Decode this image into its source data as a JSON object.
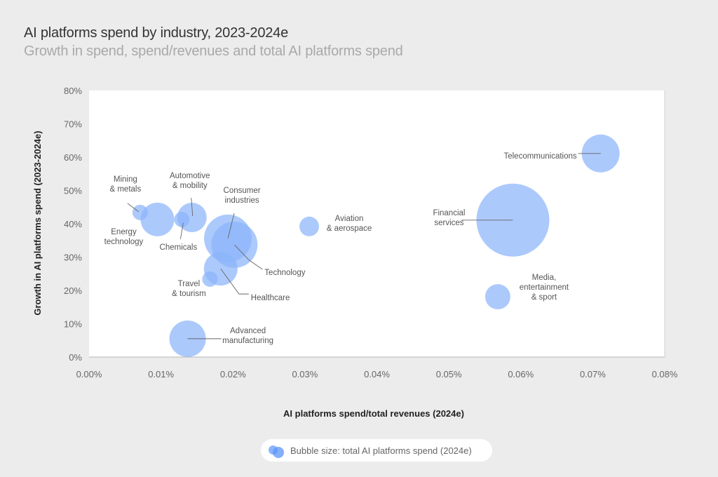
{
  "header": {
    "title": "AI platforms spend by industry, 2023-2024e",
    "subtitle": "Growth in spend, spend/revenues and total AI platforms spend"
  },
  "legend": {
    "text": "Bubble size: total AI platforms spend (2024e)",
    "icon": "overlapping-bubbles-icon"
  },
  "colors": {
    "bubble": "#8cb4fb",
    "background": "#ececec",
    "plot": "#ffffff"
  },
  "chart_data": {
    "type": "scatter",
    "subtype": "bubble",
    "title": "AI platforms spend by industry, 2023-2024e",
    "subtitle": "Growth in spend, spend/revenues and total AI platforms spend",
    "xlabel": "AI platforms spend/total revenues (2024e)",
    "ylabel": "Growth in AI platforms spend (2023-2024e)",
    "xlim": [
      0,
      0.08
    ],
    "ylim": [
      0,
      80
    ],
    "x_unit": "%",
    "y_unit": "%",
    "x_ticks": [
      "0.00%",
      "0.01%",
      "0.02%",
      "0.03%",
      "0.04%",
      "0.05%",
      "0.06%",
      "0.07%",
      "0.08%"
    ],
    "y_ticks": [
      "0%",
      "10%",
      "20%",
      "30%",
      "40%",
      "50%",
      "60%",
      "70%",
      "80%"
    ],
    "grid": false,
    "legend_position": "bottom-center",
    "size_label": "Bubble size: total AI platforms spend (2024e)",
    "size_note": "relative bubble size (radius-proportional, unitless)",
    "points": [
      {
        "name": "Mining & metals",
        "label_lines": [
          "Mining",
          "& metals"
        ],
        "x": 0.0071,
        "y": 43.4,
        "size": 11
      },
      {
        "name": "Energy technology",
        "label_lines": [
          "Energy",
          "technology"
        ],
        "x": 0.0095,
        "y": 41.3,
        "size": 24
      },
      {
        "name": "Chemicals",
        "label_lines": [
          "Chemicals"
        ],
        "x": 0.0129,
        "y": 41.3,
        "size": 11
      },
      {
        "name": "Automotive & mobility",
        "label_lines": [
          "Automotive",
          "& mobility"
        ],
        "x": 0.0143,
        "y": 41.9,
        "size": 21
      },
      {
        "name": "Consumer industries",
        "label_lines": [
          "Consumer",
          "industries"
        ],
        "x": 0.0193,
        "y": 35.6,
        "size": 34
      },
      {
        "name": "Technology",
        "label_lines": [
          "Technology"
        ],
        "x": 0.0202,
        "y": 33.7,
        "size": 33
      },
      {
        "name": "Healthcare",
        "label_lines": [
          "Healthcare"
        ],
        "x": 0.0183,
        "y": 26.5,
        "size": 24
      },
      {
        "name": "Travel & tourism",
        "label_lines": [
          "Travel",
          "& tourism"
        ],
        "x": 0.0168,
        "y": 23.4,
        "size": 11
      },
      {
        "name": "Advanced manufacturing",
        "label_lines": [
          "Advanced",
          "manufacturing"
        ],
        "x": 0.0137,
        "y": 5.5,
        "size": 26
      },
      {
        "name": "Aviation & aerospace",
        "label_lines": [
          "Aviation",
          "& aerospace"
        ],
        "x": 0.0306,
        "y": 39.2,
        "size": 14
      },
      {
        "name": "Financial services",
        "label_lines": [
          "Financial",
          "services"
        ],
        "x": 0.0589,
        "y": 41.1,
        "size": 52
      },
      {
        "name": "Telecommunications",
        "label_lines": [
          "Telecommunications"
        ],
        "x": 0.0711,
        "y": 61.1,
        "size": 27
      },
      {
        "name": "Media, entertainment & sport",
        "label_lines": [
          "Media,",
          "entertainment",
          "& sport"
        ],
        "x": 0.0568,
        "y": 18.1,
        "size": 18
      }
    ]
  }
}
